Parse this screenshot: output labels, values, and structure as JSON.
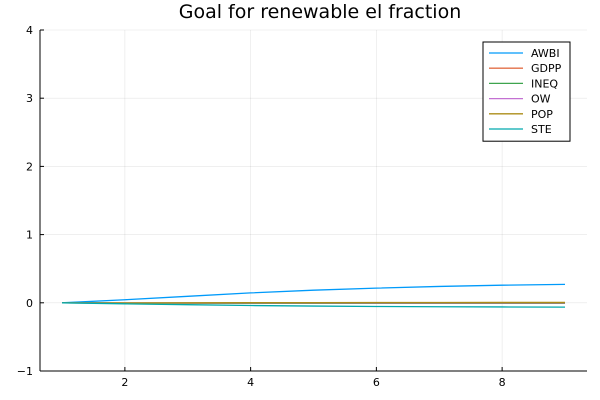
{
  "chart_data": {
    "type": "line",
    "title": "Goal for renewable el fraction",
    "xlabel": "",
    "ylabel": "",
    "xlim": [
      0.65,
      9.35
    ],
    "ylim": [
      -1,
      4
    ],
    "xticks": [
      2,
      4,
      6,
      8
    ],
    "yticks": [
      -1,
      0,
      1,
      2,
      3,
      4
    ],
    "x": [
      1,
      2,
      3,
      4,
      5,
      6,
      7,
      8,
      9
    ],
    "grid": true,
    "legend_position": "top-right",
    "series": [
      {
        "name": "AWBI",
        "color": "#009AFA",
        "values": [
          0,
          0.045,
          0.095,
          0.145,
          0.185,
          0.215,
          0.24,
          0.258,
          0.27
        ]
      },
      {
        "name": "GDPP",
        "color": "#E36F47",
        "values": [
          0,
          -0.005,
          -0.007,
          -0.008,
          -0.008,
          -0.008,
          -0.008,
          -0.008,
          -0.008
        ]
      },
      {
        "name": "INEQ",
        "color": "#3EA44E",
        "values": [
          0,
          -0.003,
          -0.005,
          -0.006,
          -0.006,
          -0.006,
          -0.006,
          -0.006,
          -0.006
        ]
      },
      {
        "name": "OW",
        "color": "#C371D2",
        "values": [
          0,
          -0.001,
          -0.001,
          -0.001,
          -0.001,
          -0.001,
          -0.001,
          -0.001,
          -0.001
        ]
      },
      {
        "name": "POP",
        "color": "#AC8D18",
        "values": [
          0,
          -0.002,
          0.001,
          0.002,
          0.003,
          0.004,
          0.004,
          0.005,
          0.005
        ]
      },
      {
        "name": "STE",
        "color": "#00A9AD",
        "values": [
          0,
          -0.015,
          -0.028,
          -0.04,
          -0.048,
          -0.054,
          -0.058,
          -0.061,
          -0.063
        ]
      }
    ]
  }
}
